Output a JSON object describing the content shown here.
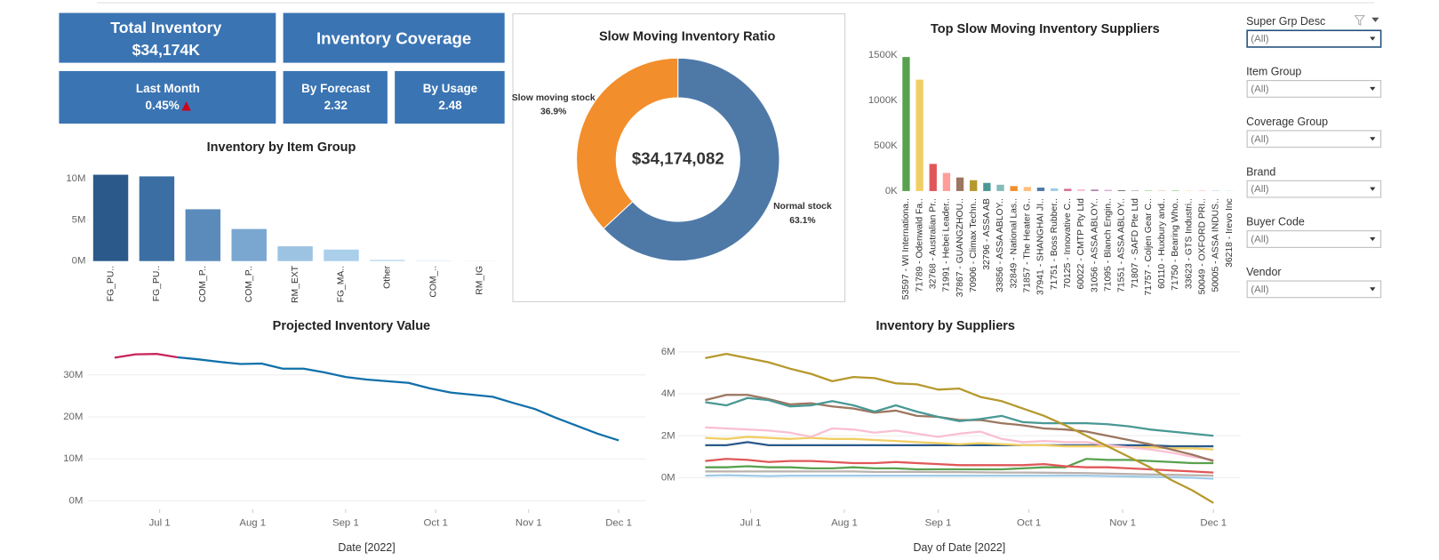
{
  "kpis": [
    {
      "label": "Total Inventory",
      "value": "$34,174K"
    },
    {
      "label": "Inventory Coverage"
    },
    {
      "label": "Last Month",
      "value": "0.45%"
    },
    {
      "label": "By Forecast",
      "value": "2.32"
    },
    {
      "label": "By Usage",
      "value": "2.48"
    }
  ],
  "filters": [
    {
      "label": "Super Grp Desc",
      "value": "(All)"
    },
    {
      "label": "Item Group",
      "value": "(All)"
    },
    {
      "label": "Coverage Group",
      "value": "(All)"
    },
    {
      "label": "Brand",
      "value": "(All)"
    },
    {
      "label": "Buyer Code",
      "value": "(All)"
    },
    {
      "label": "Vendor",
      "value": "(All)"
    }
  ],
  "chart_data": [
    {
      "type": "bar",
      "title": "Inventory by Item Group",
      "categories": [
        "FG_PU..",
        "FG_PU..",
        "COM_P..",
        "COM_P..",
        "RM_EXT",
        "FG_MA..",
        "Other",
        "COM_..",
        "RM_IG"
      ],
      "values": [
        10.5,
        10.3,
        6.3,
        3.9,
        1.8,
        1.4,
        0.15,
        0.05,
        0.02
      ],
      "colors": [
        "#2b5a8a",
        "#3b6fa3",
        "#5b8bbb",
        "#79a7d0",
        "#9dc3e3",
        "#a9cfea",
        "#b9d8ef",
        "#c4def2",
        "#cfe4f5"
      ],
      "ylim": [
        0,
        12
      ],
      "yticks": [
        {
          "value": 0,
          "label": "0M"
        },
        {
          "value": 5,
          "label": "5M"
        },
        {
          "value": 10,
          "label": "10M"
        }
      ]
    },
    {
      "type": "pie",
      "title": "Slow Moving Inventory Ratio",
      "center_label": "$34,174,082",
      "categories": [
        "Slow moving stock",
        "Normal stock"
      ],
      "values": [
        36.9,
        63.1
      ],
      "value_labels": [
        "36.9%",
        "63.1%"
      ],
      "colors": [
        "#f28e2b",
        "#4e79a7"
      ]
    },
    {
      "type": "bar",
      "title": "Top Slow Moving Inventory Suppliers",
      "categories": [
        "53597 - WI Internationa..",
        "71789 - Odenwald Fa..",
        "32768 - Australian Pr..",
        "71991 - Hebei Leader..",
        "37867 - GUANGZHOU..",
        "70906 - Climax Techn..",
        "32796 - ASSA AB",
        "33856 - ASSA ABLOY..",
        "32849 - National Las..",
        "71857 - The Heater G..",
        "37941 - SHANGHAI JI..",
        "71751 - Boss Rubber..",
        "70125 - Innovative C..",
        "60022 - CMTP Pty Ltd",
        "31056 - ASSA ABLOY..",
        "71095 - Blanch Engin..",
        "71551 - ASSA ABLOY..",
        "71807 - SAFD Pte Ltd",
        "71757 - Coljen Gear C..",
        "60110 - Huxbury and..",
        "71750 - Bearing Who..",
        "33623 - GTS Industri..",
        "50049 - OXFORD PRI..",
        "50005 - ASSA INDUS..",
        "36218 - Irevo Inc"
      ],
      "values": [
        1480,
        1230,
        300,
        200,
        150,
        120,
        90,
        70,
        55,
        45,
        38,
        30,
        25,
        20,
        16,
        13,
        10,
        8,
        6,
        5,
        4,
        3,
        2,
        2,
        1
      ],
      "colors": [
        "#59a14f",
        "#f1ce63",
        "#e15759",
        "#ff9d9a",
        "#9d7660",
        "#b6992d",
        "#499894",
        "#86bcb6",
        "#f28e2b",
        "#ffbe7d",
        "#4e79a7",
        "#a0cbe8",
        "#d37295",
        "#fabfd2",
        "#b07aa1",
        "#d4a6c8",
        "#79706e",
        "#bab0ac",
        "#8cd17d",
        "#d7b5a6",
        "#59a14f",
        "#f1ce63",
        "#e15759",
        "#4e79a7",
        "#499894"
      ],
      "ylim": [
        -50,
        1600
      ],
      "yticks": [
        {
          "value": 0,
          "label": "0K"
        },
        {
          "value": 500,
          "label": "500K"
        },
        {
          "value": 1000,
          "label": "1000K"
        },
        {
          "value": 1500,
          "label": "1500K"
        }
      ]
    },
    {
      "type": "line",
      "title": "Projected Inventory Value",
      "x_label": "Date [2022]",
      "x": [
        "2022-06-16",
        "2022-06-23",
        "2022-06-30",
        "2022-07-07",
        "2022-07-14",
        "2022-07-21",
        "2022-07-28",
        "2022-08-04",
        "2022-08-11",
        "2022-08-18",
        "2022-08-25",
        "2022-09-01",
        "2022-09-08",
        "2022-09-15",
        "2022-09-22",
        "2022-09-29",
        "2022-10-06",
        "2022-10-13",
        "2022-10-20",
        "2022-10-27",
        "2022-11-03",
        "2022-11-10",
        "2022-11-17",
        "2022-11-24",
        "2022-12-01"
      ],
      "series": [
        {
          "color": "#1170aa",
          "values": [
            34.1,
            34.9,
            35.0,
            34.2,
            33.7,
            33.1,
            32.6,
            32.7,
            31.5,
            31.5,
            30.6,
            29.5,
            28.9,
            28.5,
            28.1,
            26.8,
            25.8,
            25.3,
            24.8,
            23.3,
            21.9,
            19.8,
            17.9,
            16.0,
            14.4
          ]
        }
      ],
      "highlight_color": "#c8245a",
      "highlight_until": "2022-07-07",
      "xlim": [
        "2022-06-07",
        "2022-12-10"
      ],
      "xticks": [
        {
          "value": "2022-07-01",
          "label": "Jul 1"
        },
        {
          "value": "2022-08-01",
          "label": "Aug 1"
        },
        {
          "value": "2022-09-01",
          "label": "Sep 1"
        },
        {
          "value": "2022-10-01",
          "label": "Oct 1"
        },
        {
          "value": "2022-11-01",
          "label": "Nov 1"
        },
        {
          "value": "2022-12-01",
          "label": "Dec 1"
        }
      ],
      "ylim": [
        -2,
        38
      ],
      "yticks": [
        {
          "value": 0,
          "label": "0M"
        },
        {
          "value": 10,
          "label": "10M"
        },
        {
          "value": 20,
          "label": "20M"
        },
        {
          "value": 30,
          "label": "30M"
        }
      ]
    },
    {
      "type": "line",
      "title": "Inventory by Suppliers",
      "x_label": "Day of Date [2022]",
      "x": [
        "2022-06-16",
        "2022-06-23",
        "2022-06-30",
        "2022-07-07",
        "2022-07-14",
        "2022-07-21",
        "2022-07-28",
        "2022-08-04",
        "2022-08-11",
        "2022-08-18",
        "2022-08-25",
        "2022-09-01",
        "2022-09-08",
        "2022-09-15",
        "2022-09-22",
        "2022-09-29",
        "2022-10-06",
        "2022-10-13",
        "2022-10-20",
        "2022-10-27",
        "2022-11-03",
        "2022-11-10",
        "2022-11-17",
        "2022-11-24",
        "2022-12-01"
      ],
      "series": [
        {
          "color": "#bab0ac",
          "values": [
            0.3,
            0.3,
            0.3,
            0.3,
            0.3,
            0.3,
            0.3,
            0.3,
            0.28,
            0.28,
            0.28,
            0.27,
            0.27,
            0.26,
            0.25,
            0.25,
            0.24,
            0.23,
            0.22,
            0.2,
            0.18,
            0.16,
            0.14,
            0.12,
            0.1
          ]
        },
        {
          "color": "#a0cbe8",
          "values": [
            0.1,
            0.12,
            0.1,
            0.08,
            0.1,
            0.1,
            0.1,
            0.1,
            0.1,
            0.1,
            0.1,
            0.1,
            0.1,
            0.1,
            0.1,
            0.1,
            0.1,
            0.1,
            0.1,
            0.08,
            0.06,
            0.04,
            0.02,
            0.0,
            -0.05
          ]
        },
        {
          "color": "#59a14f",
          "values": [
            0.5,
            0.5,
            0.55,
            0.5,
            0.5,
            0.45,
            0.45,
            0.5,
            0.45,
            0.45,
            0.4,
            0.4,
            0.4,
            0.4,
            0.4,
            0.45,
            0.5,
            0.5,
            0.9,
            0.85,
            0.85,
            0.8,
            0.75,
            0.7,
            0.7
          ]
        },
        {
          "color": "#e15759",
          "values": [
            0.8,
            0.9,
            0.85,
            0.75,
            0.8,
            0.8,
            0.75,
            0.7,
            0.7,
            0.75,
            0.7,
            0.65,
            0.6,
            0.6,
            0.6,
            0.6,
            0.65,
            0.55,
            0.5,
            0.5,
            0.45,
            0.4,
            0.35,
            0.3,
            0.25
          ]
        },
        {
          "color": "#2b5a8a",
          "values": [
            1.55,
            1.55,
            1.7,
            1.55,
            1.55,
            1.55,
            1.55,
            1.55,
            1.55,
            1.55,
            1.55,
            1.55,
            1.55,
            1.55,
            1.55,
            1.55,
            1.55,
            1.55,
            1.55,
            1.55,
            1.55,
            1.55,
            1.5,
            1.5,
            1.5
          ]
        },
        {
          "color": "#f1ce63",
          "values": [
            1.9,
            1.85,
            1.95,
            1.9,
            1.85,
            1.9,
            1.85,
            1.85,
            1.8,
            1.75,
            1.7,
            1.65,
            1.6,
            1.65,
            1.6,
            1.55,
            1.55,
            1.5,
            1.5,
            1.5,
            1.45,
            1.45,
            1.4,
            1.4,
            1.35
          ]
        },
        {
          "color": "#fabfd2",
          "values": [
            2.4,
            2.35,
            2.3,
            2.25,
            2.15,
            1.95,
            2.35,
            2.3,
            2.15,
            2.25,
            2.1,
            1.95,
            2.1,
            2.2,
            1.85,
            1.7,
            1.75,
            1.7,
            1.7,
            1.55,
            1.45,
            1.35,
            1.2,
            1.0,
            0.85
          ]
        },
        {
          "color": "#9d7660",
          "values": [
            3.7,
            3.95,
            3.95,
            3.75,
            3.5,
            3.55,
            3.4,
            3.3,
            3.1,
            3.2,
            2.95,
            2.9,
            2.75,
            2.75,
            2.6,
            2.5,
            2.35,
            2.3,
            2.2,
            2.0,
            1.8,
            1.6,
            1.35,
            1.1,
            0.8
          ]
        },
        {
          "color": "#499894",
          "values": [
            3.6,
            3.45,
            3.8,
            3.7,
            3.4,
            3.45,
            3.65,
            3.45,
            3.15,
            3.45,
            3.15,
            2.9,
            2.7,
            2.8,
            2.95,
            2.65,
            2.6,
            2.6,
            2.6,
            2.55,
            2.45,
            2.3,
            2.2,
            2.1,
            2.0
          ]
        },
        {
          "color": "#b6992d",
          "values": [
            5.7,
            5.9,
            5.7,
            5.5,
            5.2,
            4.95,
            4.6,
            4.8,
            4.75,
            4.5,
            4.45,
            4.2,
            4.25,
            3.85,
            3.65,
            3.3,
            2.95,
            2.5,
            2.0,
            1.5,
            1.0,
            0.5,
            -0.1,
            -0.6,
            -1.2
          ]
        }
      ],
      "xlim": [
        "2022-06-07",
        "2022-12-10"
      ],
      "xticks": [
        {
          "value": "2022-07-01",
          "label": "Jul 1"
        },
        {
          "value": "2022-08-01",
          "label": "Aug 1"
        },
        {
          "value": "2022-09-01",
          "label": "Sep 1"
        },
        {
          "value": "2022-10-01",
          "label": "Oct 1"
        },
        {
          "value": "2022-11-01",
          "label": "Nov 1"
        },
        {
          "value": "2022-12-01",
          "label": "Dec 1"
        }
      ],
      "ylim": [
        -1.5,
        6.5
      ],
      "yticks": [
        {
          "value": 0,
          "label": "0M"
        },
        {
          "value": 2,
          "label": "2M"
        },
        {
          "value": 4,
          "label": "4M"
        },
        {
          "value": 6,
          "label": "6M"
        }
      ]
    }
  ]
}
